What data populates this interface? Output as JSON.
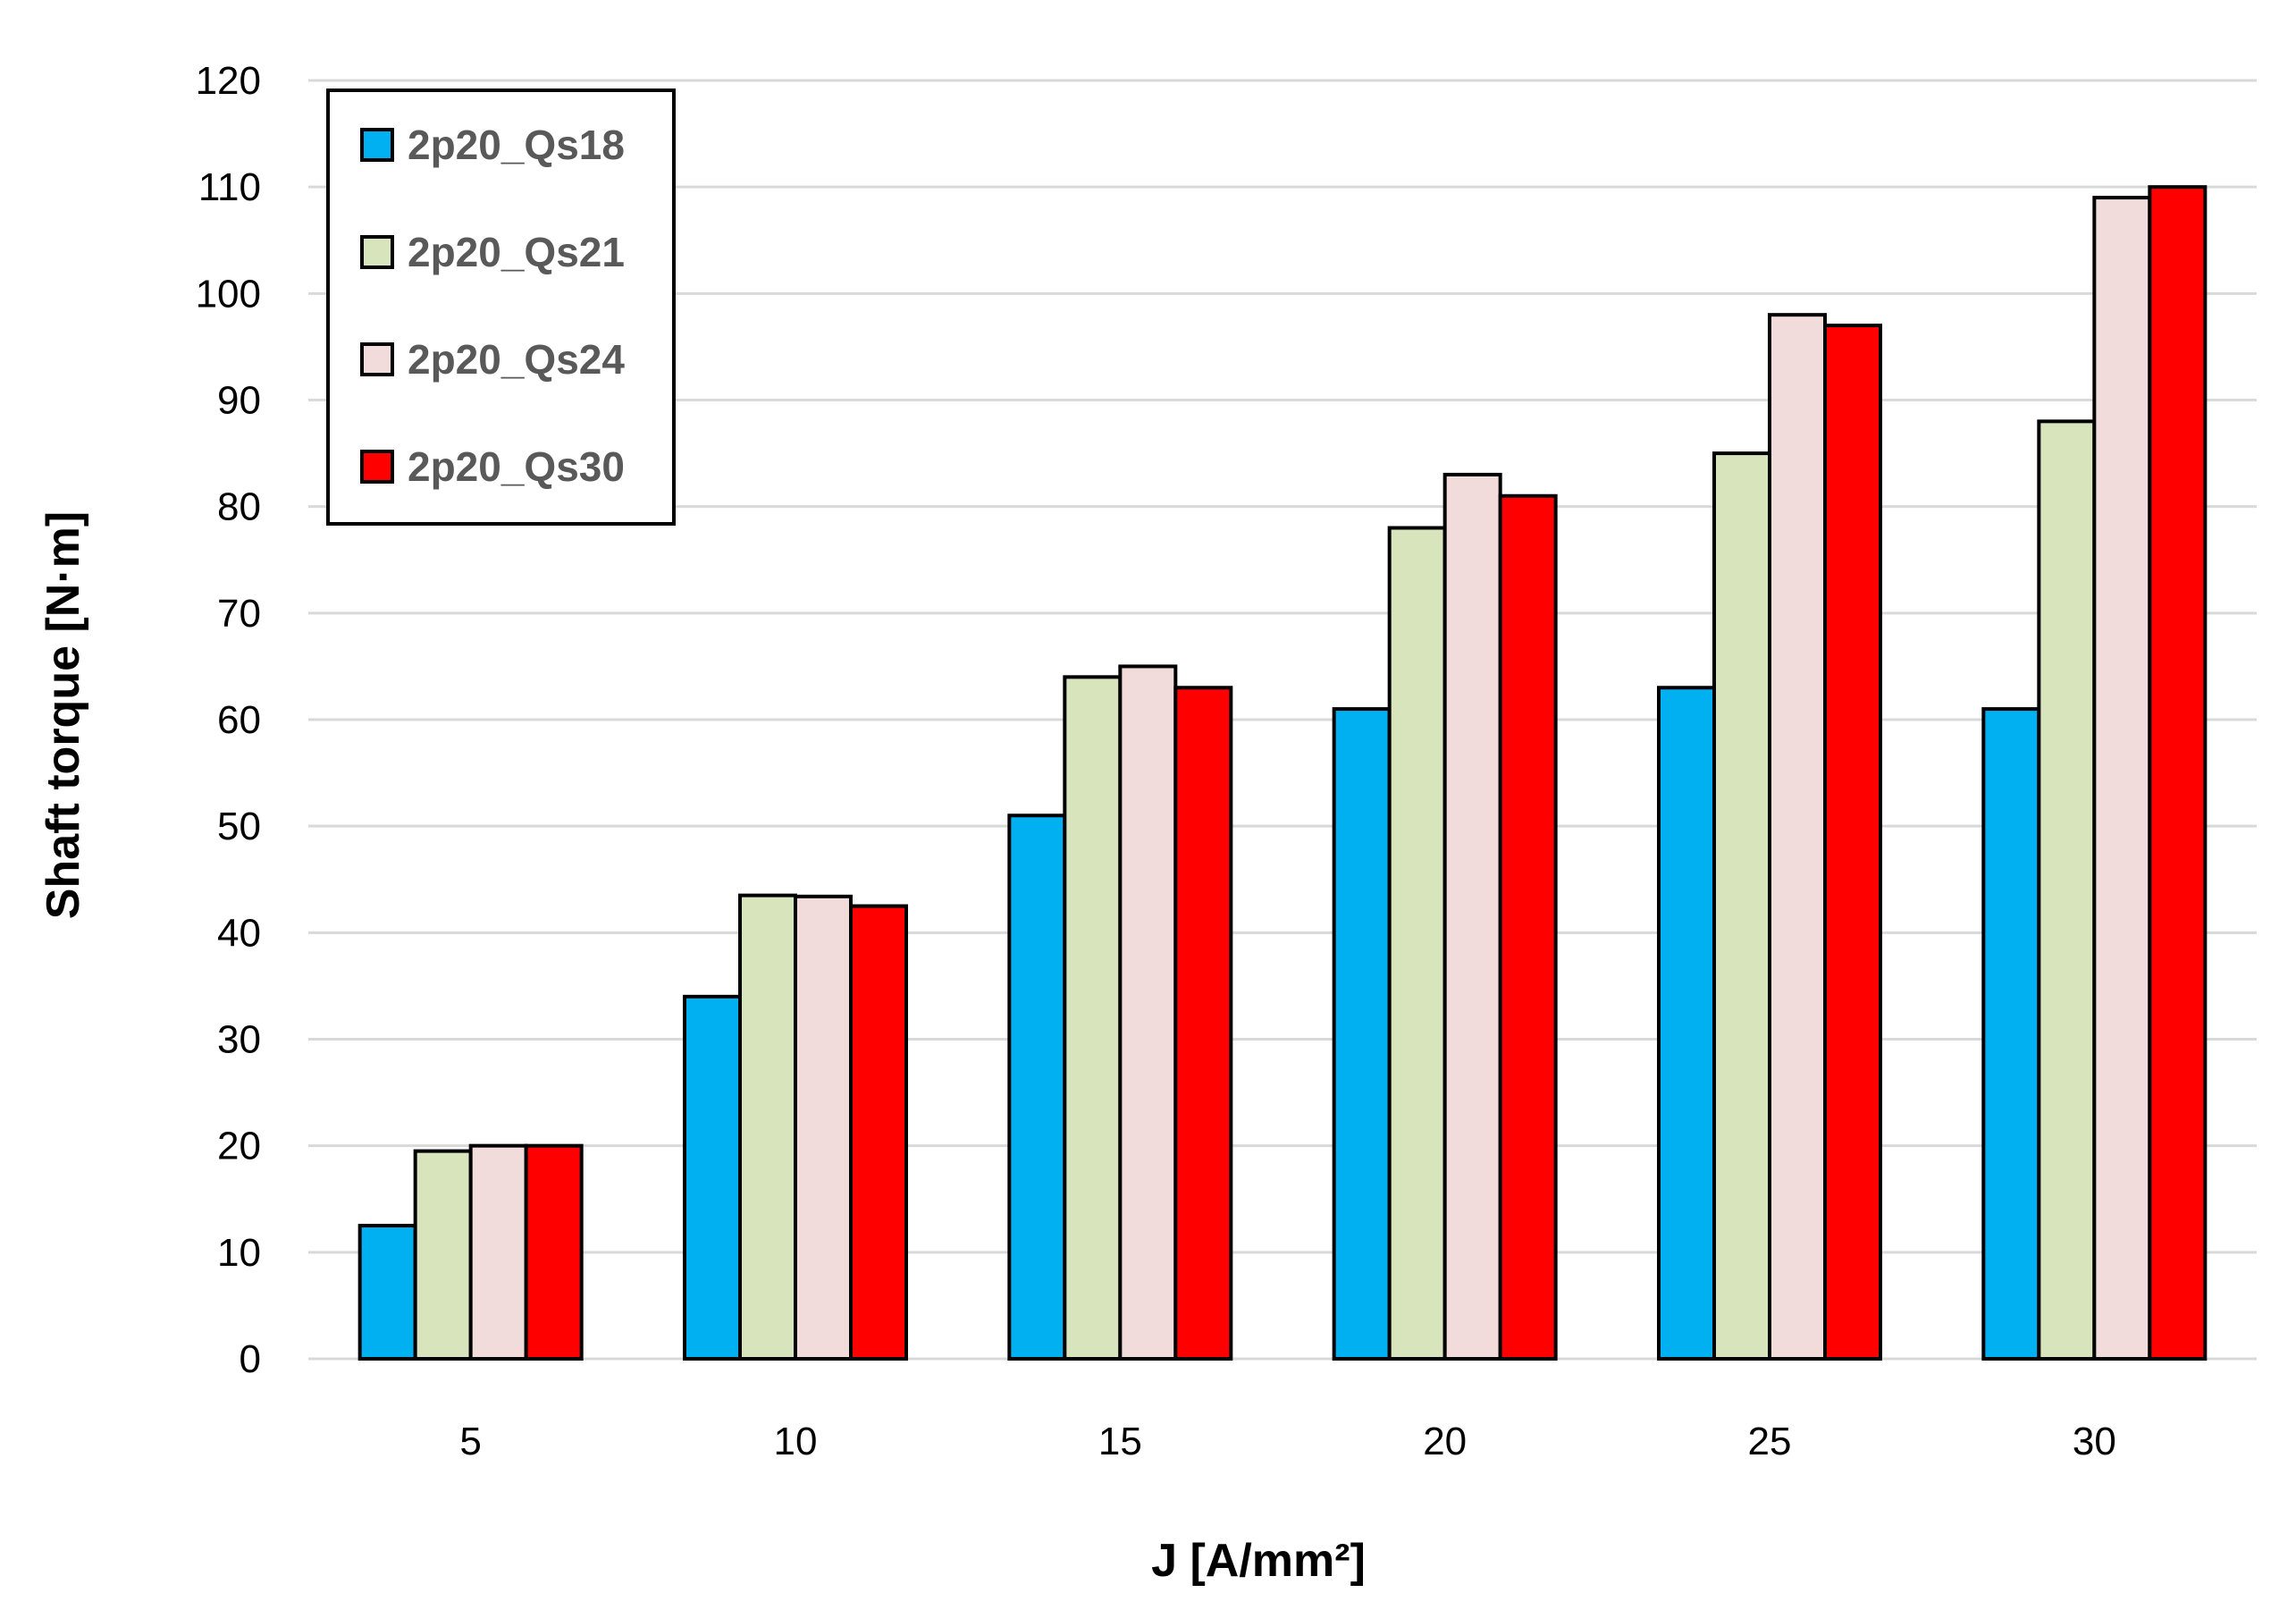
{
  "chart_data": {
    "type": "bar",
    "title": "",
    "xlabel": "J [A/mm²]",
    "ylabel": "Shaft torque [N·m]",
    "categories": [
      "5",
      "10",
      "15",
      "20",
      "25",
      "30"
    ],
    "ylim": [
      0,
      120
    ],
    "yticks": [
      0,
      10,
      20,
      30,
      40,
      50,
      60,
      70,
      80,
      90,
      100,
      110,
      120
    ],
    "grid": true,
    "legend_position": "top-left",
    "series": [
      {
        "name": "2p20_Qs18",
        "color": "#00B0F0",
        "values": [
          12.5,
          34,
          51,
          61,
          63,
          61
        ]
      },
      {
        "name": "2p20_Qs21",
        "color": "#D8E4BC",
        "values": [
          19.5,
          43.5,
          64,
          78,
          85,
          88
        ]
      },
      {
        "name": "2p20_Qs24",
        "color": "#F2DCDB",
        "values": [
          20,
          43.4,
          65,
          83,
          98,
          109
        ]
      },
      {
        "name": "2p20_Qs30",
        "color": "#FF0000",
        "values": [
          20,
          42.5,
          63,
          81,
          97,
          110
        ]
      }
    ]
  }
}
